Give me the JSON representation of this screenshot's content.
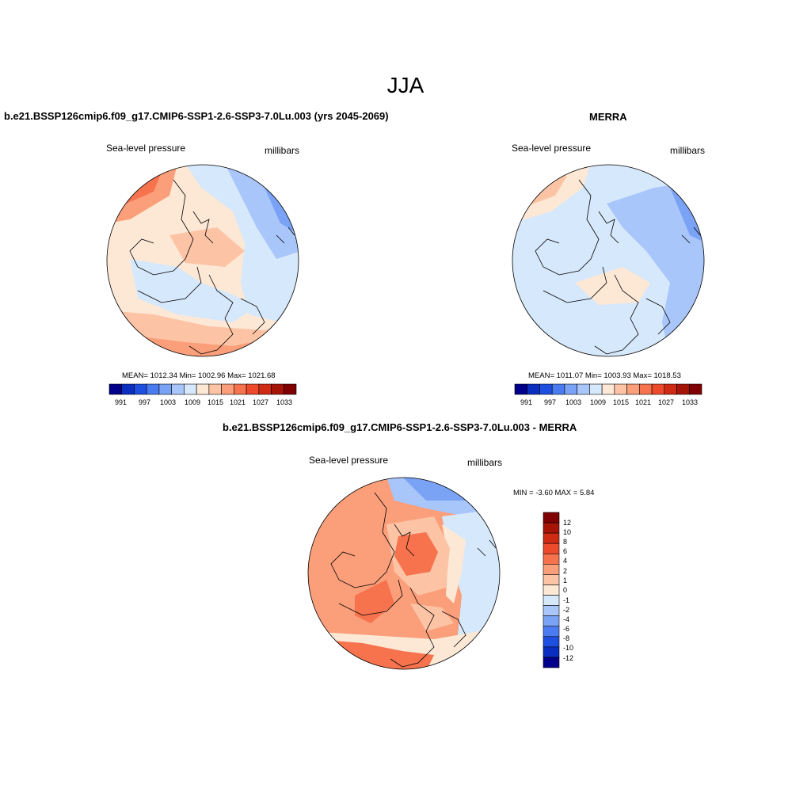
{
  "figure": {
    "title": "JJA"
  },
  "panels": [
    {
      "title": "b.e21.BSSP126cmip6.f09_g17.CMIP6-SSP1-2.6-SSP3-7.0Lu.003 (yrs 2045-2069)",
      "variable": "Sea-level pressure",
      "units": "millibars",
      "stats": "MEAN= 1012.34  Min= 1002.96  Max= 1021.68",
      "colorbar_ticks": [
        "991",
        "997",
        "1003",
        "1009",
        "1015",
        "1021",
        "1027",
        "1033"
      ]
    },
    {
      "title": "MERRA",
      "variable": "Sea-level pressure",
      "units": "millibars",
      "stats": "MEAN= 1011.07  Min= 1003.93  Max= 1018.53",
      "colorbar_ticks": [
        "991",
        "997",
        "1003",
        "1009",
        "1015",
        "1021",
        "1027",
        "1033"
      ]
    },
    {
      "title": "b.e21.BSSP126cmip6.f09_g17.CMIP6-SSP1-2.6-SSP3-7.0Lu.003 - MERRA",
      "variable": "Sea-level pressure",
      "units": "millibars",
      "stats": "MIN =  -3.60 MAX =   5.84",
      "colorbar_ticks": [
        "12",
        "10",
        "8",
        "6",
        "4",
        "2",
        "1",
        "0",
        "-1",
        "-2",
        "-4",
        "-6",
        "-8",
        "-10",
        "-12"
      ]
    }
  ],
  "colors": {
    "abs_scale": [
      "#00008b",
      "#0a2fc0",
      "#1f4fe0",
      "#4a7bf0",
      "#7aa2f5",
      "#a9c6fa",
      "#d6e8fb",
      "#fde8d6",
      "#fcc4a5",
      "#fb9e7a",
      "#f6734e",
      "#ec4a2a",
      "#cf2a14",
      "#a61408",
      "#800000"
    ],
    "diff_scale": [
      "#800000",
      "#a61408",
      "#cf2a14",
      "#ec4a2a",
      "#f6734e",
      "#fb9e7a",
      "#fcc4a5",
      "#fde8d6",
      "#d6e8fb",
      "#a9c6fa",
      "#7aa2f5",
      "#4a7bf0",
      "#1f4fe0",
      "#0a2fc0",
      "#00008b"
    ]
  }
}
